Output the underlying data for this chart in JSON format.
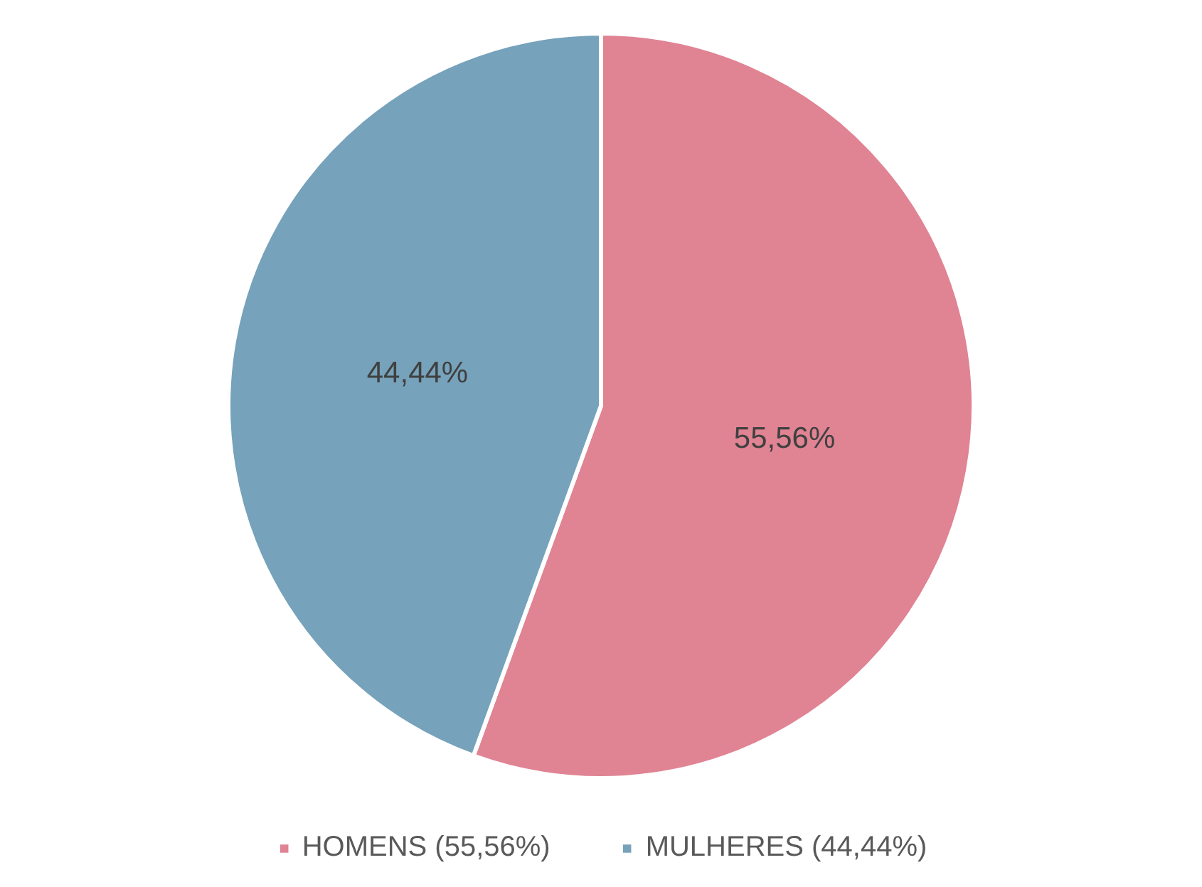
{
  "chart_data": {
    "type": "pie",
    "categories": [
      "HOMENS (55,56%)",
      "MULHERES (44,44%)"
    ],
    "values": [
      55.56,
      44.44
    ],
    "colors": [
      "#e08393",
      "#76a2bb"
    ],
    "value_labels": [
      "55,56%",
      "44,44%"
    ],
    "legend": "bottom"
  }
}
